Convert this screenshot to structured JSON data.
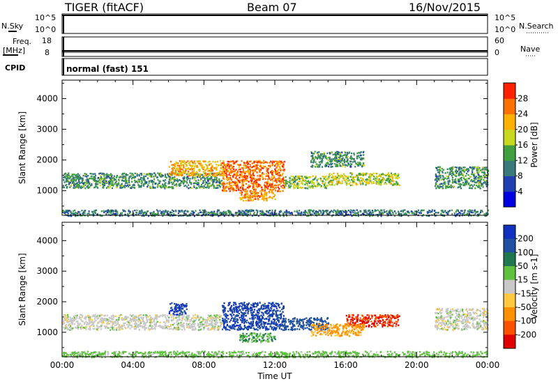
{
  "header": {
    "station": "TIGER (fitACF)",
    "beam": "Beam 07",
    "date": "16/Nov/2015"
  },
  "aux": {
    "nsky_label": "N.Sky",
    "nsearch_label": "N.Search",
    "nsky_ticks": [
      "10^5",
      "10^0"
    ],
    "nsearch_ticks": [
      "10^5",
      "10^0"
    ],
    "freq_label": "Freq.",
    "freq_unit": "[MHz]",
    "freq_ticks": [
      "18",
      "8"
    ],
    "nave_label": "Nave",
    "nave_ticks": [
      "60",
      "0"
    ],
    "cpid_label": "CPID",
    "cpid_text": "normal (fast) 151"
  },
  "colors": {
    "power_scale": [
      "#0000e0",
      "#2040b0",
      "#3a7a7a",
      "#40a040",
      "#c8d820",
      "#ffb000",
      "#ff7000",
      "#ff2000"
    ],
    "velocity_scale": [
      "#1030c0",
      "#2050a0",
      "#207850",
      "#60c040",
      "#c8c8c8",
      "#ffc840",
      "#ff9000",
      "#ff5000",
      "#e00000"
    ]
  },
  "chart_data": [
    {
      "type": "heatmap",
      "parameter": "Power",
      "ylabel": "Slant Range [km]",
      "yticks": [
        "1000",
        "2000",
        "3000",
        "4000"
      ],
      "ylim": [
        200,
        4600
      ],
      "xlim": [
        0,
        24
      ],
      "colorbar_label": "Power [dB]",
      "colorbar_ticks": [
        "4",
        "8",
        "12",
        "16",
        "20",
        "24",
        "28"
      ],
      "colorbar_range": [
        0,
        32
      ],
      "echo_regions": [
        {
          "x": [
            0,
            24
          ],
          "y": [
            200,
            400
          ],
          "value": 10
        },
        {
          "x": [
            0,
            9
          ],
          "y": [
            1100,
            1600
          ],
          "value": 12
        },
        {
          "x": [
            6,
            9
          ],
          "y": [
            1500,
            2000
          ],
          "value": 22
        },
        {
          "x": [
            9,
            12.5
          ],
          "y": [
            1000,
            2000
          ],
          "value": 26
        },
        {
          "x": [
            10,
            12
          ],
          "y": [
            700,
            1000
          ],
          "value": 24
        },
        {
          "x": [
            12.5,
            15
          ],
          "y": [
            1100,
            1500
          ],
          "value": 16
        },
        {
          "x": [
            15,
            19
          ],
          "y": [
            1200,
            1600
          ],
          "value": 18
        },
        {
          "x": [
            14,
            17
          ],
          "y": [
            1800,
            2300
          ],
          "value": 12
        },
        {
          "x": [
            21,
            24
          ],
          "y": [
            1100,
            1800
          ],
          "value": 12
        }
      ]
    },
    {
      "type": "heatmap",
      "parameter": "Velocity",
      "ylabel": "Slant Range [km]",
      "yticks": [
        "1000",
        "2000",
        "3000",
        "4000"
      ],
      "ylim": [
        200,
        4600
      ],
      "xlim": [
        0,
        24
      ],
      "xlabel": "Time UT",
      "xticks": [
        "00:00",
        "04:00",
        "08:00",
        "12:00",
        "16:00",
        "20:00",
        "00:00"
      ],
      "colorbar_label": "Velocity [m s-1]",
      "colorbar_ticks": [
        "200",
        "100",
        "50",
        "15",
        "-15",
        "-50",
        "-100",
        "-200"
      ],
      "echo_regions": [
        {
          "x": [
            0,
            24
          ],
          "y": [
            200,
            400
          ],
          "value": 30
        },
        {
          "x": [
            0,
            9
          ],
          "y": [
            1100,
            1600
          ],
          "value": 0
        },
        {
          "x": [
            6,
            7
          ],
          "y": [
            1600,
            2000
          ],
          "value": 200
        },
        {
          "x": [
            9,
            12.5
          ],
          "y": [
            1100,
            2000
          ],
          "value": 200
        },
        {
          "x": [
            10,
            12
          ],
          "y": [
            700,
            1000
          ],
          "value": 50
        },
        {
          "x": [
            12.5,
            15
          ],
          "y": [
            1100,
            1500
          ],
          "value": 150
        },
        {
          "x": [
            16,
            19
          ],
          "y": [
            1200,
            1600
          ],
          "value": -200
        },
        {
          "x": [
            14,
            17
          ],
          "y": [
            900,
            1300
          ],
          "value": -60
        },
        {
          "x": [
            21,
            24
          ],
          "y": [
            1100,
            1800
          ],
          "value": 0
        }
      ]
    }
  ]
}
